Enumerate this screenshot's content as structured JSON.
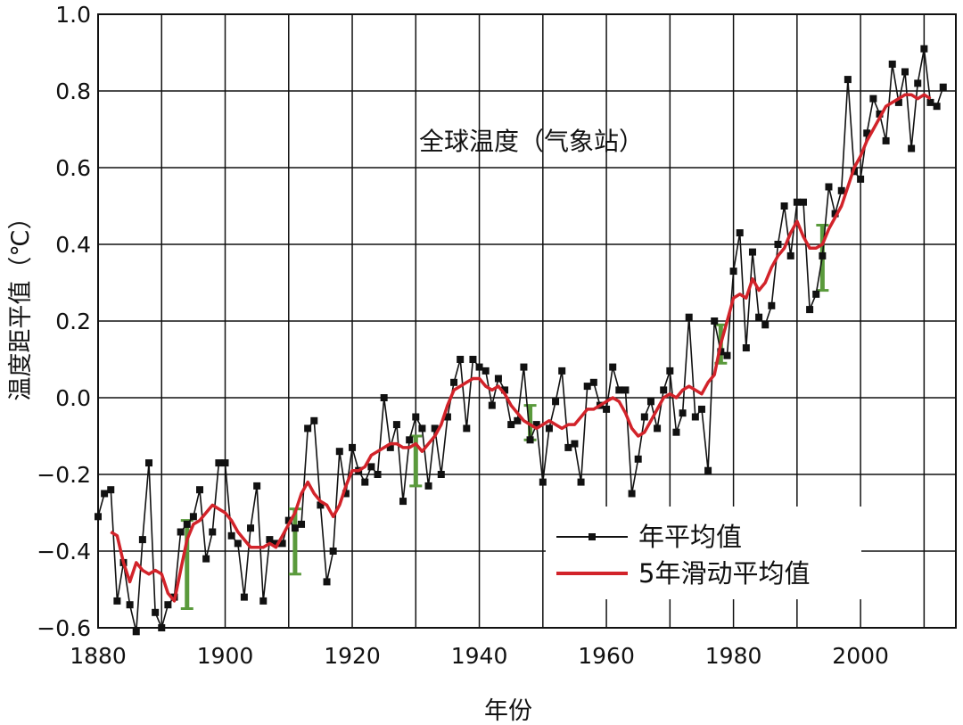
{
  "chart_data": {
    "type": "line",
    "title": "全球温度（气象站）",
    "xlabel": "年份",
    "ylabel": "温度距平值（℃）",
    "xlim": [
      1880,
      2015
    ],
    "ylim": [
      -0.6,
      1.0
    ],
    "x_ticks": [
      1880,
      1900,
      1920,
      1940,
      1960,
      1980,
      2000
    ],
    "x_tick_labels": [
      "1880",
      "1900",
      "1920",
      "1940",
      "1960",
      "1980",
      "2000"
    ],
    "y_ticks": [
      -0.6,
      -0.4,
      -0.2,
      0.0,
      0.2,
      0.4,
      0.6,
      0.8,
      1.0
    ],
    "y_tick_labels": [
      "−0.6",
      "−0.4",
      "−0.2",
      "0.0",
      "0.2",
      "0.4",
      "0.6",
      "0.8",
      "1.0"
    ],
    "grid": true,
    "legend_position": "lower-right",
    "series": [
      {
        "name": "年平均值",
        "color": "#111111",
        "marker": "square",
        "x": [
          1880,
          1881,
          1882,
          1883,
          1884,
          1885,
          1886,
          1887,
          1888,
          1889,
          1890,
          1891,
          1892,
          1893,
          1894,
          1895,
          1896,
          1897,
          1898,
          1899,
          1900,
          1901,
          1902,
          1903,
          1904,
          1905,
          1906,
          1907,
          1908,
          1909,
          1910,
          1911,
          1912,
          1913,
          1914,
          1915,
          1916,
          1917,
          1918,
          1919,
          1920,
          1921,
          1922,
          1923,
          1924,
          1925,
          1926,
          1927,
          1928,
          1929,
          1930,
          1931,
          1932,
          1933,
          1934,
          1935,
          1936,
          1937,
          1938,
          1939,
          1940,
          1941,
          1942,
          1943,
          1944,
          1945,
          1946,
          1947,
          1948,
          1949,
          1950,
          1951,
          1952,
          1953,
          1954,
          1955,
          1956,
          1957,
          1958,
          1959,
          1960,
          1961,
          1962,
          1963,
          1964,
          1965,
          1966,
          1967,
          1968,
          1969,
          1970,
          1971,
          1972,
          1973,
          1974,
          1975,
          1976,
          1977,
          1978,
          1979,
          1980,
          1981,
          1982,
          1983,
          1984,
          1985,
          1986,
          1987,
          1988,
          1989,
          1990,
          1991,
          1992,
          1993,
          1994,
          1995,
          1996,
          1997,
          1998,
          1999,
          2000,
          2001,
          2002,
          2003,
          2004,
          2005,
          2006,
          2007,
          2008,
          2009,
          2010,
          2011,
          2012,
          2013
        ],
        "values": [
          -0.31,
          -0.25,
          -0.24,
          -0.53,
          -0.43,
          -0.54,
          -0.61,
          -0.37,
          -0.17,
          -0.56,
          -0.6,
          -0.54,
          -0.52,
          -0.35,
          -0.33,
          -0.31,
          -0.24,
          -0.42,
          -0.35,
          -0.17,
          -0.17,
          -0.36,
          -0.38,
          -0.52,
          -0.34,
          -0.23,
          -0.53,
          -0.37,
          -0.38,
          -0.38,
          -0.32,
          -0.34,
          -0.33,
          -0.08,
          -0.06,
          -0.28,
          -0.48,
          -0.4,
          -0.14,
          -0.25,
          -0.13,
          -0.19,
          -0.22,
          -0.18,
          -0.2,
          0.0,
          -0.13,
          -0.07,
          -0.27,
          -0.11,
          -0.05,
          -0.08,
          -0.23,
          -0.08,
          -0.2,
          -0.05,
          0.04,
          0.1,
          -0.08,
          0.1,
          0.08,
          0.07,
          -0.02,
          0.05,
          0.02,
          -0.07,
          -0.06,
          0.08,
          -0.11,
          -0.07,
          -0.22,
          -0.08,
          -0.01,
          0.07,
          -0.13,
          -0.12,
          -0.22,
          0.03,
          0.04,
          -0.02,
          -0.03,
          0.08,
          0.02,
          0.02,
          -0.25,
          -0.16,
          -0.05,
          -0.01,
          -0.08,
          0.02,
          0.07,
          -0.09,
          -0.04,
          0.21,
          -0.05,
          -0.03,
          -0.19,
          0.2,
          0.12,
          0.11,
          0.33,
          0.43,
          0.13,
          0.38,
          0.21,
          0.19,
          0.24,
          0.4,
          0.5,
          0.37,
          0.51,
          0.51,
          0.23,
          0.27,
          0.37,
          0.55,
          0.48,
          0.54,
          0.83,
          0.59,
          0.57,
          0.69,
          0.78,
          0.74,
          0.67,
          0.87,
          0.77,
          0.85,
          0.65,
          0.82,
          0.91,
          0.77,
          0.76,
          0.81
        ]
      },
      {
        "name": "5年滑动平均值",
        "color": "#d2232a",
        "marker": "none",
        "x": [
          1882,
          1883,
          1884,
          1885,
          1886,
          1887,
          1888,
          1889,
          1890,
          1891,
          1892,
          1893,
          1894,
          1895,
          1896,
          1897,
          1898,
          1899,
          1900,
          1901,
          1902,
          1903,
          1904,
          1905,
          1906,
          1907,
          1908,
          1909,
          1910,
          1911,
          1912,
          1913,
          1914,
          1915,
          1916,
          1917,
          1918,
          1919,
          1920,
          1921,
          1922,
          1923,
          1924,
          1925,
          1926,
          1927,
          1928,
          1929,
          1930,
          1931,
          1932,
          1933,
          1934,
          1935,
          1936,
          1937,
          1938,
          1939,
          1940,
          1941,
          1942,
          1943,
          1944,
          1945,
          1946,
          1947,
          1948,
          1949,
          1950,
          1951,
          1952,
          1953,
          1954,
          1955,
          1956,
          1957,
          1958,
          1959,
          1960,
          1961,
          1962,
          1963,
          1964,
          1965,
          1966,
          1967,
          1968,
          1969,
          1970,
          1971,
          1972,
          1973,
          1974,
          1975,
          1976,
          1977,
          1978,
          1979,
          1980,
          1981,
          1982,
          1983,
          1984,
          1985,
          1986,
          1987,
          1988,
          1989,
          1990,
          1991,
          1992,
          1993,
          1994,
          1995,
          1996,
          1997,
          1998,
          1999,
          2000,
          2001,
          2002,
          2003,
          2004,
          2005,
          2006,
          2007,
          2008,
          2009,
          2010,
          2011
        ],
        "values": [
          -0.35,
          -0.36,
          -0.43,
          -0.48,
          -0.43,
          -0.45,
          -0.46,
          -0.45,
          -0.46,
          -0.51,
          -0.53,
          -0.45,
          -0.37,
          -0.33,
          -0.32,
          -0.3,
          -0.28,
          -0.29,
          -0.3,
          -0.32,
          -0.35,
          -0.37,
          -0.39,
          -0.39,
          -0.39,
          -0.38,
          -0.39,
          -0.36,
          -0.33,
          -0.3,
          -0.25,
          -0.22,
          -0.25,
          -0.27,
          -0.28,
          -0.31,
          -0.28,
          -0.23,
          -0.19,
          -0.19,
          -0.18,
          -0.15,
          -0.14,
          -0.13,
          -0.12,
          -0.12,
          -0.13,
          -0.13,
          -0.12,
          -0.14,
          -0.12,
          -0.1,
          -0.07,
          -0.02,
          0.02,
          0.03,
          0.04,
          0.05,
          0.05,
          0.03,
          0.02,
          0.03,
          0.01,
          -0.02,
          -0.04,
          -0.06,
          -0.07,
          -0.08,
          -0.07,
          -0.06,
          -0.07,
          -0.08,
          -0.07,
          -0.07,
          -0.05,
          -0.03,
          -0.03,
          -0.02,
          -0.01,
          0.0,
          -0.01,
          -0.04,
          -0.08,
          -0.1,
          -0.09,
          -0.06,
          -0.03,
          0.0,
          0.01,
          0.0,
          0.02,
          0.03,
          0.02,
          0.01,
          0.04,
          0.06,
          0.14,
          0.2,
          0.26,
          0.27,
          0.26,
          0.31,
          0.28,
          0.3,
          0.34,
          0.37,
          0.39,
          0.43,
          0.46,
          0.42,
          0.39,
          0.39,
          0.4,
          0.44,
          0.47,
          0.5,
          0.55,
          0.6,
          0.63,
          0.67,
          0.7,
          0.73,
          0.76,
          0.77,
          0.78,
          0.79,
          0.79,
          0.78,
          0.79,
          0.78
        ]
      }
    ],
    "error_bars": {
      "color": "#5a9a3c",
      "items": [
        {
          "x": 1894,
          "low": -0.55,
          "high": -0.32
        },
        {
          "x": 1911,
          "low": -0.46,
          "high": -0.29
        },
        {
          "x": 1930,
          "low": -0.23,
          "high": -0.1
        },
        {
          "x": 1948,
          "low": -0.11,
          "high": -0.02
        },
        {
          "x": 1978,
          "low": 0.09,
          "high": 0.19
        },
        {
          "x": 1994,
          "low": 0.28,
          "high": 0.45
        }
      ]
    }
  }
}
